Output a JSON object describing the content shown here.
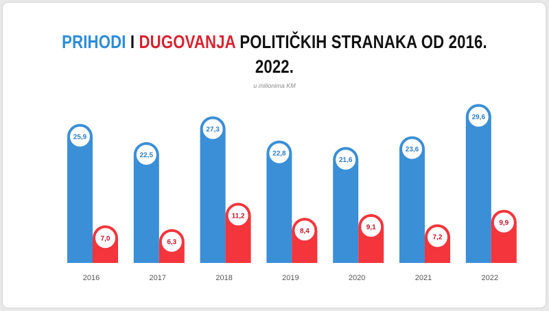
{
  "title": {
    "part1": "PRIHODI",
    "part2": " I ",
    "part3": "DUGOVANJA",
    "part4": " POLITIČKIH STRANAKA OD 2016.",
    "line2": "2022."
  },
  "subtitle": "u milionima KM",
  "colors": {
    "income": "#3a8fd6",
    "debt": "#f4353c",
    "income_text": "#2d7fc4",
    "debt_text": "#c4142a"
  },
  "chart_data": {
    "type": "bar",
    "title": "PRIHODI I DUGOVANJA POLITIČKIH STRANAKA OD 2016. 2022.",
    "subtitle": "u milionima KM",
    "xlabel": "",
    "ylabel": "",
    "grid": false,
    "categories": [
      "2016",
      "2017",
      "2018",
      "2019",
      "2020",
      "2021",
      "2022"
    ],
    "series": [
      {
        "name": "PRIHODI",
        "values": [
          25.9,
          22.5,
          27.3,
          22.8,
          21.6,
          23.6,
          29.6
        ],
        "labels": [
          "25,9",
          "22,5",
          "27,3",
          "22,8",
          "21,6",
          "23,6",
          "29,6"
        ]
      },
      {
        "name": "DUGOVANJA",
        "values": [
          7.0,
          6.3,
          11.2,
          8.4,
          9.1,
          7.2,
          9.9
        ],
        "labels": [
          "7,0",
          "6,3",
          "11,2",
          "8,4",
          "9,1",
          "7,2",
          "9,9"
        ]
      }
    ]
  }
}
